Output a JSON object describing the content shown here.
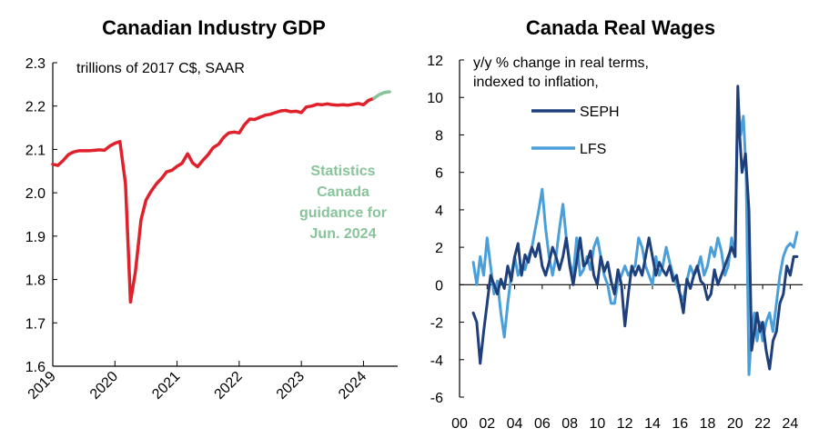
{
  "chart_data": [
    {
      "type": "line",
      "title": "Canadian Industry GDP",
      "subtitle": "trillions of 2017 C$, SAAR",
      "xlabel": "",
      "ylabel": "",
      "ylim": [
        1.6,
        2.3
      ],
      "yticks": [
        "1.6",
        "1.7",
        "1.8",
        "1.9",
        "2.0",
        "2.1",
        "2.2",
        "2.3"
      ],
      "xticks": [
        "2019",
        "2020",
        "2021",
        "2022",
        "2023",
        "2024"
      ],
      "annotation": [
        "Statistics",
        "Canada",
        "guidance for",
        "Jun. 2024"
      ],
      "colors": {
        "actual": "#e0202a",
        "guidance": "#88c49a"
      },
      "series": [
        {
          "key": "actual",
          "x": [
            2019.0,
            2019.08,
            2019.17,
            2019.25,
            2019.33,
            2019.42,
            2019.5,
            2019.58,
            2019.67,
            2019.75,
            2019.83,
            2019.92,
            2020.0,
            2020.08,
            2020.17,
            2020.25,
            2020.33,
            2020.42,
            2020.5,
            2020.58,
            2020.67,
            2020.75,
            2020.83,
            2020.92,
            2021.0,
            2021.08,
            2021.17,
            2021.25,
            2021.33,
            2021.42,
            2021.5,
            2021.58,
            2021.67,
            2021.75,
            2021.83,
            2021.92,
            2022.0,
            2022.08,
            2022.17,
            2022.25,
            2022.33,
            2022.42,
            2022.5,
            2022.58,
            2022.67,
            2022.75,
            2022.83,
            2022.92,
            2023.0,
            2023.08,
            2023.17,
            2023.25,
            2023.33,
            2023.42,
            2023.5,
            2023.58,
            2023.67,
            2023.75,
            2023.83,
            2023.92,
            2024.0,
            2024.08,
            2024.17
          ],
          "values": [
            2.066,
            2.063,
            2.075,
            2.088,
            2.094,
            2.097,
            2.097,
            2.097,
            2.098,
            2.099,
            2.098,
            2.108,
            2.114,
            2.118,
            2.021,
            1.748,
            1.818,
            1.938,
            1.983,
            2.003,
            2.021,
            2.033,
            2.048,
            2.052,
            2.061,
            2.068,
            2.09,
            2.069,
            2.06,
            2.076,
            2.088,
            2.104,
            2.112,
            2.128,
            2.138,
            2.14,
            2.138,
            2.156,
            2.17,
            2.169,
            2.174,
            2.179,
            2.181,
            2.185,
            2.189,
            2.19,
            2.187,
            2.188,
            2.185,
            2.198,
            2.2,
            2.204,
            2.203,
            2.205,
            2.203,
            2.202,
            2.203,
            2.202,
            2.204,
            2.206,
            2.203,
            2.213,
            2.218
          ]
        },
        {
          "key": "guidance",
          "x": [
            2024.17,
            2024.25,
            2024.33,
            2024.42
          ],
          "values": [
            2.218,
            2.226,
            2.231,
            2.233
          ]
        }
      ]
    },
    {
      "type": "line",
      "title": "Canada Real Wages",
      "subtitle": [
        "y/y % change in real terms,",
        "indexed to inflation,"
      ],
      "xlabel": "",
      "ylabel": "",
      "ylim": [
        -6,
        12
      ],
      "yticks": [
        "-6",
        "-4",
        "-2",
        "0",
        "2",
        "4",
        "6",
        "8",
        "10",
        "12"
      ],
      "xticks": [
        "00",
        "02",
        "04",
        "06",
        "08",
        "10",
        "12",
        "14",
        "16",
        "18",
        "20",
        "22",
        "24"
      ],
      "legend": "upper-left",
      "series": [
        {
          "name": "SEPH",
          "color": "#1f3f7a",
          "x": [
            2001.0,
            2001.25,
            2001.5,
            2001.75,
            2002.0,
            2002.25,
            2002.5,
            2002.75,
            2003.0,
            2003.25,
            2003.5,
            2003.75,
            2004.0,
            2004.25,
            2004.5,
            2004.75,
            2005.0,
            2005.25,
            2005.5,
            2005.75,
            2006.0,
            2006.25,
            2006.5,
            2006.75,
            2007.0,
            2007.25,
            2007.5,
            2007.75,
            2008.0,
            2008.25,
            2008.5,
            2008.75,
            2009.0,
            2009.25,
            2009.5,
            2009.75,
            2010.0,
            2010.25,
            2010.5,
            2010.75,
            2011.0,
            2011.25,
            2011.5,
            2011.75,
            2012.0,
            2012.25,
            2012.5,
            2012.75,
            2013.0,
            2013.25,
            2013.5,
            2013.75,
            2014.0,
            2014.25,
            2014.5,
            2014.75,
            2015.0,
            2015.25,
            2015.5,
            2015.75,
            2016.0,
            2016.25,
            2016.5,
            2016.75,
            2017.0,
            2017.25,
            2017.5,
            2017.75,
            2018.0,
            2018.25,
            2018.5,
            2018.75,
            2019.0,
            2019.25,
            2019.5,
            2019.75,
            2020.0,
            2020.2,
            2020.33,
            2020.5,
            2020.75,
            2021.0,
            2021.2,
            2021.4,
            2021.6,
            2021.8,
            2022.0,
            2022.25,
            2022.5,
            2022.75,
            2023.0,
            2023.25,
            2023.5,
            2023.75,
            2024.0,
            2024.25,
            2024.5
          ],
          "values": [
            -1.5,
            -2.0,
            -4.2,
            -2.5,
            -1.0,
            0.5,
            0.0,
            -0.5,
            0.3,
            -0.2,
            1.0,
            0.2,
            1.5,
            2.2,
            0.5,
            1.6,
            1.2,
            2.0,
            1.5,
            2.2,
            1.0,
            0.5,
            1.2,
            2.0,
            1.5,
            0.8,
            1.5,
            2.5,
            1.0,
            0.0,
            1.2,
            2.5,
            1.0,
            1.2,
            1.8,
            0.5,
            0.0,
            1.5,
            0.7,
            1.2,
            0.2,
            -0.5,
            0.8,
            0.0,
            -2.2,
            -0.5,
            1.0,
            0.5,
            1.0,
            0.5,
            1.5,
            2.5,
            1.5,
            0.5,
            1.2,
            0.8,
            0.5,
            1.0,
            0.2,
            0.5,
            -0.5,
            -1.5,
            0.3,
            -0.2,
            0.5,
            1.0,
            0.2,
            0.0,
            -0.8,
            -0.5,
            0.8,
            0.0,
            0.5,
            1.0,
            1.5,
            2.0,
            1.5,
            10.6,
            8.0,
            6.0,
            7.0,
            4.0,
            -3.5,
            -2.5,
            -1.5,
            -2.5,
            -2.0,
            -3.5,
            -4.5,
            -3.0,
            -2.5,
            -1.0,
            -0.5,
            1.0,
            0.5,
            1.5,
            1.5
          ]
        },
        {
          "name": "LFS",
          "color": "#4b9fd8",
          "x": [
            2001.0,
            2001.25,
            2001.5,
            2001.75,
            2002.0,
            2002.25,
            2002.5,
            2002.75,
            2003.0,
            2003.25,
            2003.5,
            2003.75,
            2004.0,
            2004.25,
            2004.5,
            2004.75,
            2005.0,
            2005.25,
            2005.5,
            2005.75,
            2006.0,
            2006.25,
            2006.5,
            2006.75,
            2007.0,
            2007.25,
            2007.5,
            2007.75,
            2008.0,
            2008.25,
            2008.5,
            2008.75,
            2009.0,
            2009.25,
            2009.5,
            2009.75,
            2010.0,
            2010.25,
            2010.5,
            2010.75,
            2011.0,
            2011.25,
            2011.5,
            2011.75,
            2012.0,
            2012.25,
            2012.5,
            2012.75,
            2013.0,
            2013.25,
            2013.5,
            2013.75,
            2014.0,
            2014.25,
            2014.5,
            2014.75,
            2015.0,
            2015.25,
            2015.5,
            2015.75,
            2016.0,
            2016.25,
            2016.5,
            2016.75,
            2017.0,
            2017.25,
            2017.5,
            2017.75,
            2018.0,
            2018.25,
            2018.5,
            2018.75,
            2019.0,
            2019.25,
            2019.5,
            2019.75,
            2020.0,
            2020.2,
            2020.4,
            2020.6,
            2020.8,
            2021.0,
            2021.2,
            2021.4,
            2021.6,
            2021.8,
            2022.0,
            2022.25,
            2022.5,
            2022.75,
            2023.0,
            2023.25,
            2023.5,
            2023.75,
            2024.0,
            2024.25,
            2024.5
          ],
          "values": [
            1.2,
            0.0,
            1.5,
            0.5,
            2.5,
            1.0,
            -0.5,
            0.2,
            -1.5,
            -2.8,
            -1.0,
            0.5,
            1.5,
            0.5,
            1.0,
            0.8,
            1.5,
            2.0,
            3.0,
            4.0,
            5.1,
            3.0,
            1.5,
            0.5,
            1.5,
            3.0,
            4.3,
            2.5,
            1.2,
            0.5,
            2.5,
            0.5,
            0.8,
            1.5,
            0.8,
            2.0,
            2.5,
            1.5,
            0.5,
            0.0,
            -1.0,
            -1.0,
            0.2,
            0.5,
            1.0,
            0.5,
            0.8,
            1.0,
            2.5,
            2.0,
            1.0,
            0.5,
            0.0,
            1.5,
            0.5,
            1.0,
            2.0,
            1.2,
            0.5,
            0.0,
            -0.5,
            -0.8,
            0.2,
            1.0,
            0.5,
            0.8,
            1.5,
            0.5,
            1.0,
            2.0,
            1.5,
            2.5,
            1.8,
            0.5,
            1.0,
            2.5,
            1.5,
            10.0,
            8.0,
            9.0,
            6.0,
            -4.8,
            -2.5,
            -1.5,
            -3.0,
            -2.0,
            -3.0,
            -2.0,
            -1.5,
            -2.5,
            -1.0,
            0.5,
            1.5,
            2.0,
            2.2,
            2.0,
            2.8
          ]
        }
      ]
    }
  ]
}
